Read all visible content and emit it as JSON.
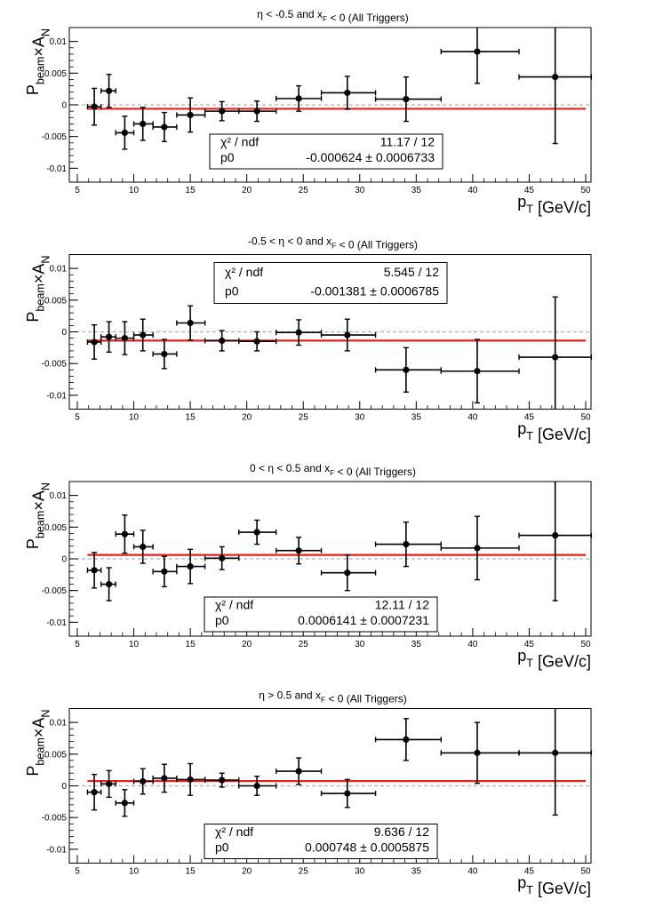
{
  "chart_data": [
    {
      "type": "scatter",
      "title": "η < -0.5 and x_F < 0 (All Triggers)",
      "xlabel": "p_T [GeV/c]",
      "ylabel": "P_beam×A_N",
      "xlim": [
        5,
        50
      ],
      "ylim": [
        -0.011,
        0.011
      ],
      "xticks": [
        "5",
        "10",
        "15",
        "20",
        "25",
        "30",
        "35",
        "40",
        "45",
        "50"
      ],
      "yticks": [
        "0.01",
        "0.005",
        "0",
        "-0.005",
        "-0.01"
      ],
      "points": [
        {
          "x": 6.5,
          "xlo": 5.9,
          "xhi": 7.1,
          "y": -0.0003,
          "yerr": 0.0029
        },
        {
          "x": 7.8,
          "xlo": 7.1,
          "xhi": 8.4,
          "y": 0.0022,
          "yerr": 0.0026
        },
        {
          "x": 9.2,
          "xlo": 8.4,
          "xhi": 10.0,
          "y": -0.0044,
          "yerr": 0.0026
        },
        {
          "x": 10.8,
          "xlo": 10.0,
          "xhi": 11.7,
          "y": -0.003,
          "yerr": 0.0026
        },
        {
          "x": 12.7,
          "xlo": 11.7,
          "xhi": 13.8,
          "y": -0.0035,
          "yerr": 0.0023
        },
        {
          "x": 15.0,
          "xlo": 13.8,
          "xhi": 16.3,
          "y": -0.0016,
          "yerr": 0.0027
        },
        {
          "x": 17.8,
          "xlo": 16.3,
          "xhi": 19.3,
          "y": -0.001,
          "yerr": 0.0015
        },
        {
          "x": 20.9,
          "xlo": 19.3,
          "xhi": 22.6,
          "y": -0.001,
          "yerr": 0.0016
        },
        {
          "x": 24.6,
          "xlo": 22.6,
          "xhi": 26.6,
          "y": 0.001,
          "yerr": 0.002
        },
        {
          "x": 28.9,
          "xlo": 26.6,
          "xhi": 31.4,
          "y": 0.0019,
          "yerr": 0.0026
        },
        {
          "x": 34.1,
          "xlo": 31.4,
          "xhi": 37.2,
          "y": 0.0009,
          "yerr": 0.0035
        },
        {
          "x": 40.4,
          "xlo": 37.2,
          "xhi": 44.1,
          "y": 0.0084,
          "yerr": 0.005
        },
        {
          "x": 47.3,
          "xlo": 44.1,
          "xhi": 50.5,
          "y": 0.0044,
          "yerr": 0.0105
        }
      ],
      "fit": {
        "p0": -0.000624
      },
      "stats": {
        "chi2_label": "χ² / ndf",
        "chi2_value": "11.17 / 12",
        "p0_label": "p0",
        "p0_value": "-0.000624 ± 0.0006733",
        "box": "lower-middle"
      }
    },
    {
      "type": "scatter",
      "title": "-0.5 < η < 0 and x_F < 0 (All Triggers)",
      "xlabel": "p_T [GeV/c]",
      "ylabel": "P_beam×A_N",
      "xlim": [
        5,
        50
      ],
      "ylim": [
        -0.011,
        0.011
      ],
      "xticks": [
        "5",
        "10",
        "15",
        "20",
        "25",
        "30",
        "35",
        "40",
        "45",
        "50"
      ],
      "yticks": [
        "0.01",
        "0.005",
        "0",
        "-0.005",
        "-0.01"
      ],
      "points": [
        {
          "x": 6.5,
          "xlo": 5.9,
          "xhi": 7.1,
          "y": -0.0016,
          "yerr": 0.0027
        },
        {
          "x": 7.8,
          "xlo": 7.1,
          "xhi": 8.4,
          "y": -0.0008,
          "yerr": 0.0024
        },
        {
          "x": 9.2,
          "xlo": 8.4,
          "xhi": 10.0,
          "y": -0.001,
          "yerr": 0.0026
        },
        {
          "x": 10.8,
          "xlo": 10.0,
          "xhi": 11.7,
          "y": -0.0005,
          "yerr": 0.0025
        },
        {
          "x": 12.7,
          "xlo": 11.7,
          "xhi": 13.8,
          "y": -0.0035,
          "yerr": 0.0023
        },
        {
          "x": 15.0,
          "xlo": 13.8,
          "xhi": 16.3,
          "y": 0.0014,
          "yerr": 0.0027
        },
        {
          "x": 17.8,
          "xlo": 16.3,
          "xhi": 19.3,
          "y": -0.0014,
          "yerr": 0.0016
        },
        {
          "x": 20.9,
          "xlo": 19.3,
          "xhi": 22.6,
          "y": -0.0015,
          "yerr": 0.0015
        },
        {
          "x": 24.6,
          "xlo": 22.6,
          "xhi": 26.6,
          "y": -0.0001,
          "yerr": 0.002
        },
        {
          "x": 28.9,
          "xlo": 26.6,
          "xhi": 31.4,
          "y": -0.0005,
          "yerr": 0.0025
        },
        {
          "x": 34.1,
          "xlo": 31.4,
          "xhi": 37.2,
          "y": -0.006,
          "yerr": 0.0035
        },
        {
          "x": 40.4,
          "xlo": 37.2,
          "xhi": 44.1,
          "y": -0.0062,
          "yerr": 0.005
        },
        {
          "x": 47.3,
          "xlo": 44.1,
          "xhi": 50.5,
          "y": -0.004,
          "yerr": 0.0095
        }
      ],
      "fit": {
        "p0": -0.001381
      },
      "stats": {
        "chi2_label": "χ² / ndf",
        "chi2_value": "5.545 / 12",
        "p0_label": "p0",
        "p0_value": "-0.001381 ± 0.0006785",
        "box": "upper-middle"
      }
    },
    {
      "type": "scatter",
      "title": "0 < η < 0.5 and x_F < 0 (All Triggers)",
      "xlabel": "p_T [GeV/c]",
      "ylabel": "P_beam×A_N",
      "xlim": [
        5,
        50
      ],
      "ylim": [
        -0.011,
        0.011
      ],
      "xticks": [
        "5",
        "10",
        "15",
        "20",
        "25",
        "30",
        "35",
        "40",
        "45",
        "50"
      ],
      "yticks": [
        "0.01",
        "0.005",
        "0",
        "-0.005",
        "-0.01"
      ],
      "points": [
        {
          "x": 6.5,
          "xlo": 5.9,
          "xhi": 7.1,
          "y": -0.0018,
          "yerr": 0.0028
        },
        {
          "x": 7.8,
          "xlo": 7.1,
          "xhi": 8.4,
          "y": -0.004,
          "yerr": 0.0026
        },
        {
          "x": 9.2,
          "xlo": 8.4,
          "xhi": 10.0,
          "y": 0.0039,
          "yerr": 0.003
        },
        {
          "x": 10.8,
          "xlo": 10.0,
          "xhi": 11.7,
          "y": 0.0019,
          "yerr": 0.0026
        },
        {
          "x": 12.7,
          "xlo": 11.7,
          "xhi": 13.8,
          "y": -0.002,
          "yerr": 0.0024
        },
        {
          "x": 15.0,
          "xlo": 13.8,
          "xhi": 16.3,
          "y": -0.0012,
          "yerr": 0.0027
        },
        {
          "x": 17.8,
          "xlo": 16.3,
          "xhi": 19.3,
          "y": 0.0001,
          "yerr": 0.0018
        },
        {
          "x": 20.9,
          "xlo": 19.3,
          "xhi": 22.6,
          "y": 0.0042,
          "yerr": 0.0019
        },
        {
          "x": 24.6,
          "xlo": 22.6,
          "xhi": 26.6,
          "y": 0.0013,
          "yerr": 0.0021
        },
        {
          "x": 28.9,
          "xlo": 26.6,
          "xhi": 31.4,
          "y": -0.0022,
          "yerr": 0.0028
        },
        {
          "x": 34.1,
          "xlo": 31.4,
          "xhi": 37.2,
          "y": 0.0023,
          "yerr": 0.0035
        },
        {
          "x": 40.4,
          "xlo": 37.2,
          "xhi": 44.1,
          "y": 0.0017,
          "yerr": 0.005
        },
        {
          "x": 47.3,
          "xlo": 44.1,
          "xhi": 50.5,
          "y": 0.0037,
          "yerr": 0.0103
        }
      ],
      "fit": {
        "p0": 0.0006141
      },
      "stats": {
        "chi2_label": "χ² / ndf",
        "chi2_value": "12.11 / 12",
        "p0_label": "p0",
        "p0_value": "0.0006141 ± 0.0007231",
        "box": "lower-middle"
      }
    },
    {
      "type": "scatter",
      "title": "η > 0.5 and x_F < 0 (All Triggers)",
      "xlabel": "p_T [GeV/c]",
      "ylabel": "P_beam×A_N",
      "xlim": [
        5,
        50
      ],
      "ylim": [
        -0.011,
        0.011
      ],
      "xticks": [
        "5",
        "10",
        "15",
        "20",
        "25",
        "30",
        "35",
        "40",
        "45",
        "50"
      ],
      "yticks": [
        "0.01",
        "0.005",
        "0",
        "-0.005",
        "-0.01"
      ],
      "points": [
        {
          "x": 6.5,
          "xlo": 5.9,
          "xhi": 7.1,
          "y": -0.001,
          "yerr": 0.0028
        },
        {
          "x": 7.8,
          "xlo": 7.1,
          "xhi": 8.4,
          "y": 0.0003,
          "yerr": 0.0021
        },
        {
          "x": 9.2,
          "xlo": 8.4,
          "xhi": 10.0,
          "y": -0.0027,
          "yerr": 0.0021
        },
        {
          "x": 10.8,
          "xlo": 10.0,
          "xhi": 11.7,
          "y": 0.0007,
          "yerr": 0.002
        },
        {
          "x": 12.7,
          "xlo": 11.7,
          "xhi": 13.8,
          "y": 0.0012,
          "yerr": 0.0022
        },
        {
          "x": 15.0,
          "xlo": 13.8,
          "xhi": 16.3,
          "y": 0.001,
          "yerr": 0.0025
        },
        {
          "x": 17.8,
          "xlo": 16.3,
          "xhi": 19.3,
          "y": 0.0009,
          "yerr": 0.0011
        },
        {
          "x": 20.9,
          "xlo": 19.3,
          "xhi": 22.6,
          "y": 0.0,
          "yerr": 0.0015
        },
        {
          "x": 24.6,
          "xlo": 22.6,
          "xhi": 26.6,
          "y": 0.0023,
          "yerr": 0.0021
        },
        {
          "x": 28.9,
          "xlo": 26.6,
          "xhi": 31.4,
          "y": -0.0012,
          "yerr": 0.0022
        },
        {
          "x": 34.1,
          "xlo": 31.4,
          "xhi": 37.2,
          "y": 0.0073,
          "yerr": 0.0033
        },
        {
          "x": 40.4,
          "xlo": 37.2,
          "xhi": 44.1,
          "y": 0.0052,
          "yerr": 0.0048
        },
        {
          "x": 47.3,
          "xlo": 44.1,
          "xhi": 50.5,
          "y": 0.0052,
          "yerr": 0.0098
        }
      ],
      "fit": {
        "p0": 0.000748
      },
      "stats": {
        "chi2_label": "χ² / ndf",
        "chi2_value": "9.636 / 12",
        "p0_label": "p0",
        "p0_value": "0.000748 ± 0.0005875",
        "box": "lower-middle"
      }
    }
  ],
  "colors": {
    "fit_line": "#e8201a",
    "zero_line": "#b0b0b0",
    "markers": "#000000",
    "frame": "#000000"
  }
}
